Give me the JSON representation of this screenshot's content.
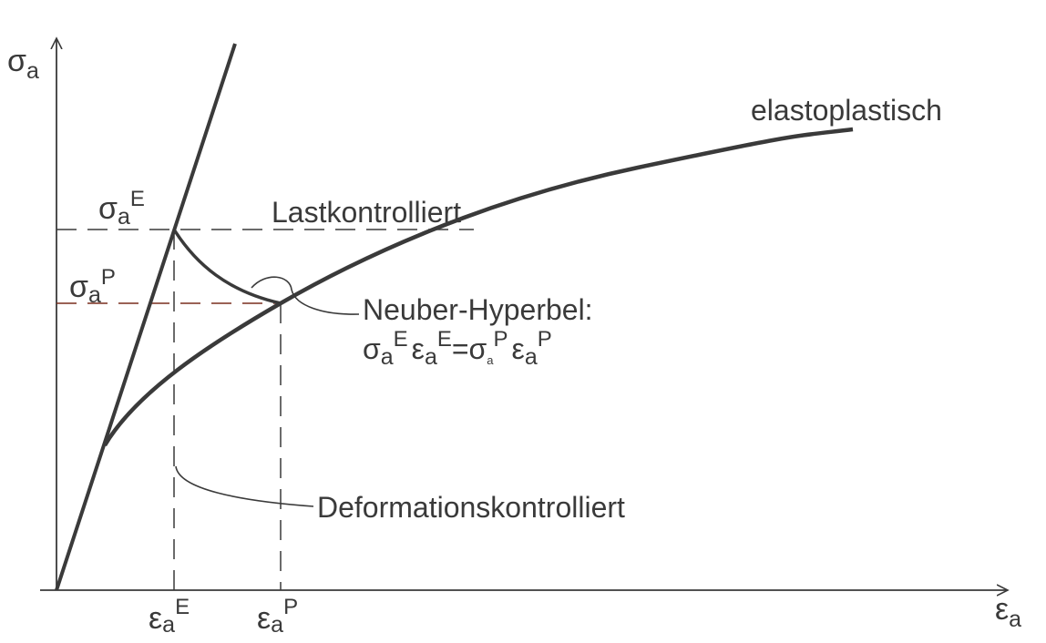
{
  "axes": {
    "y_symbol": "σ",
    "y_sub": "a",
    "x_symbol": "ε",
    "x_sub": "a"
  },
  "curves": {
    "elastoplastic_label": "elastoplastisch"
  },
  "levels": {
    "sigma_E": {
      "symbol": "σ",
      "sub": "a",
      "sup": "E"
    },
    "sigma_P": {
      "symbol": "σ",
      "sub": "a",
      "sup": "P"
    },
    "eps_E": {
      "symbol": "ε",
      "sub": "a",
      "sup": "E"
    },
    "eps_P": {
      "symbol": "ε",
      "sub": "a",
      "sup": "P"
    }
  },
  "annotations": {
    "load_controlled": "Lastkontrolliert",
    "deformation_controlled": "Deformationskontrolliert",
    "neuber_title": "Neuber-Hyperbel:",
    "neuber_formula": {
      "s1": "σ",
      "s1_sub": "a",
      "s1_sup": "E",
      "e1": "ε",
      "e1_sub": "a",
      "e1_sup": "E",
      "eq": "=",
      "s2": "σ",
      "s2_sub": "a",
      "s2_sup": "P",
      "e2": "ε",
      "e2_sub": "a",
      "e2_sup": "P"
    }
  },
  "colors": {
    "ink": "#3a3a3a",
    "dashed_accent": "#7a2e1e"
  }
}
